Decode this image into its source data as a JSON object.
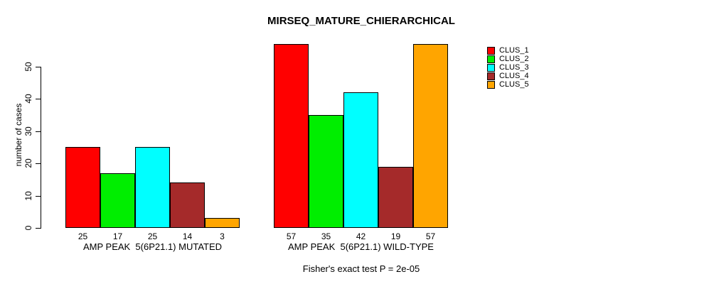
{
  "title": "MIRSEQ_MATURE_CHIERARCHICAL",
  "footer": "Fisher's exact test P = 2e-05",
  "y_axis": {
    "label": "number of cases",
    "ticks": [
      0,
      10,
      20,
      30,
      40,
      50
    ]
  },
  "legend": {
    "items": [
      {
        "label": "CLUS_1",
        "color": "#FF0000"
      },
      {
        "label": "CLUS_2",
        "color": "#00EE00"
      },
      {
        "label": "CLUS_3",
        "color": "#00FFFF"
      },
      {
        "label": "CLUS_4",
        "color": "#A52A2A"
      },
      {
        "label": "CLUS_5",
        "color": "#FFA500"
      }
    ]
  },
  "chart_data": {
    "type": "bar",
    "title": "MIRSEQ_MATURE_CHIERARCHICAL",
    "ylabel": "number of cases",
    "ylim": [
      0,
      57
    ],
    "y_ticks": [
      0,
      10,
      20,
      30,
      40,
      50
    ],
    "grid": false,
    "legend_position": "top-right",
    "bar_borders": true,
    "value_labels_shown": true,
    "categories": [
      "AMP PEAK  5(6P21.1) MUTATED",
      "AMP PEAK  5(6P21.1) WILD-TYPE"
    ],
    "groups": [
      {
        "label": "AMP PEAK  5(6P21.1) MUTATED",
        "values": [
          25,
          17,
          25,
          14,
          3
        ]
      },
      {
        "label": "AMP PEAK  5(6P21.1) WILD-TYPE",
        "values": [
          57,
          35,
          42,
          19,
          57
        ]
      }
    ],
    "series": [
      {
        "name": "CLUS_1",
        "color": "#FF0000",
        "values": [
          25,
          57
        ]
      },
      {
        "name": "CLUS_2",
        "color": "#00EE00",
        "values": [
          17,
          35
        ]
      },
      {
        "name": "CLUS_3",
        "color": "#00FFFF",
        "values": [
          25,
          42
        ]
      },
      {
        "name": "CLUS_4",
        "color": "#A52A2A",
        "values": [
          14,
          19
        ]
      },
      {
        "name": "CLUS_5",
        "color": "#FFA500",
        "values": [
          3,
          57
        ]
      }
    ],
    "annotation": "Fisher's exact test P = 2e-05"
  }
}
